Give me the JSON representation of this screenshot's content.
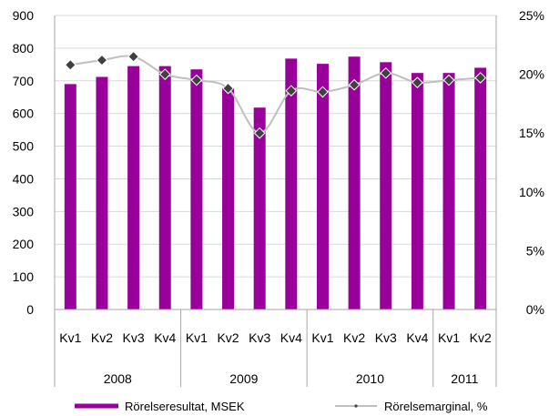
{
  "chart_data": {
    "type": "bar",
    "categories": [
      "Kv1",
      "Kv2",
      "Kv3",
      "Kv4",
      "Kv1",
      "Kv2",
      "Kv3",
      "Kv4",
      "Kv1",
      "Kv2",
      "Kv3",
      "Kv4",
      "Kv1",
      "Kv2"
    ],
    "groups": [
      {
        "label": "2008",
        "count": 4
      },
      {
        "label": "2009",
        "count": 4
      },
      {
        "label": "2010",
        "count": 4
      },
      {
        "label": "2011",
        "count": 2
      }
    ],
    "series": [
      {
        "name": "Rörelseresultat, MSEK",
        "type": "bar",
        "axis": "left",
        "color": "#990099",
        "values": [
          690,
          712,
          745,
          745,
          735,
          678,
          618,
          768,
          752,
          774,
          757,
          724,
          724,
          740
        ]
      },
      {
        "name": "Rörelsemarginal, %",
        "type": "line",
        "axis": "right",
        "color": "#bfbfbf",
        "marker_color": "#404040",
        "values": [
          20.8,
          21.2,
          21.5,
          20.0,
          19.5,
          18.8,
          15.0,
          18.6,
          18.5,
          19.1,
          20.1,
          19.3,
          19.5,
          19.7
        ]
      }
    ],
    "y_left": {
      "ylim": [
        0,
        900
      ],
      "ticks": [
        "0",
        "100",
        "200",
        "300",
        "400",
        "500",
        "600",
        "700",
        "800",
        "900"
      ]
    },
    "y_right": {
      "ylim": [
        0,
        25
      ],
      "ticks": [
        "0%",
        "5%",
        "10%",
        "15%",
        "20%",
        "25%"
      ]
    },
    "grid": true,
    "legend_position": "bottom"
  }
}
